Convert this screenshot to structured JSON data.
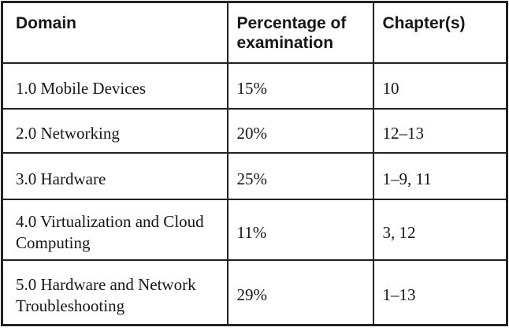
{
  "table": {
    "headers": [
      {
        "id": "domain",
        "label": "Domain"
      },
      {
        "id": "percentage",
        "label": "Percentage of examination"
      },
      {
        "id": "chapters",
        "label": "Chapter(s)"
      }
    ],
    "rows": [
      {
        "domain": "1.0 Mobile Devices",
        "percentage": "15%",
        "chapters": "10"
      },
      {
        "domain": "2.0 Networking",
        "percentage": "20%",
        "chapters": "12–13"
      },
      {
        "domain": "3.0 Hardware",
        "percentage": "25%",
        "chapters": "1–9, 11"
      },
      {
        "domain": "4.0 Virtualization and Cloud Computing",
        "percentage": "11%",
        "chapters": "3, 12"
      },
      {
        "domain": "5.0 Hardware and Network Troubleshooting",
        "percentage": "29%",
        "chapters": "1–13"
      }
    ]
  },
  "colors": {
    "border": "#222222",
    "text": "#161616",
    "background": "#ffffff"
  }
}
